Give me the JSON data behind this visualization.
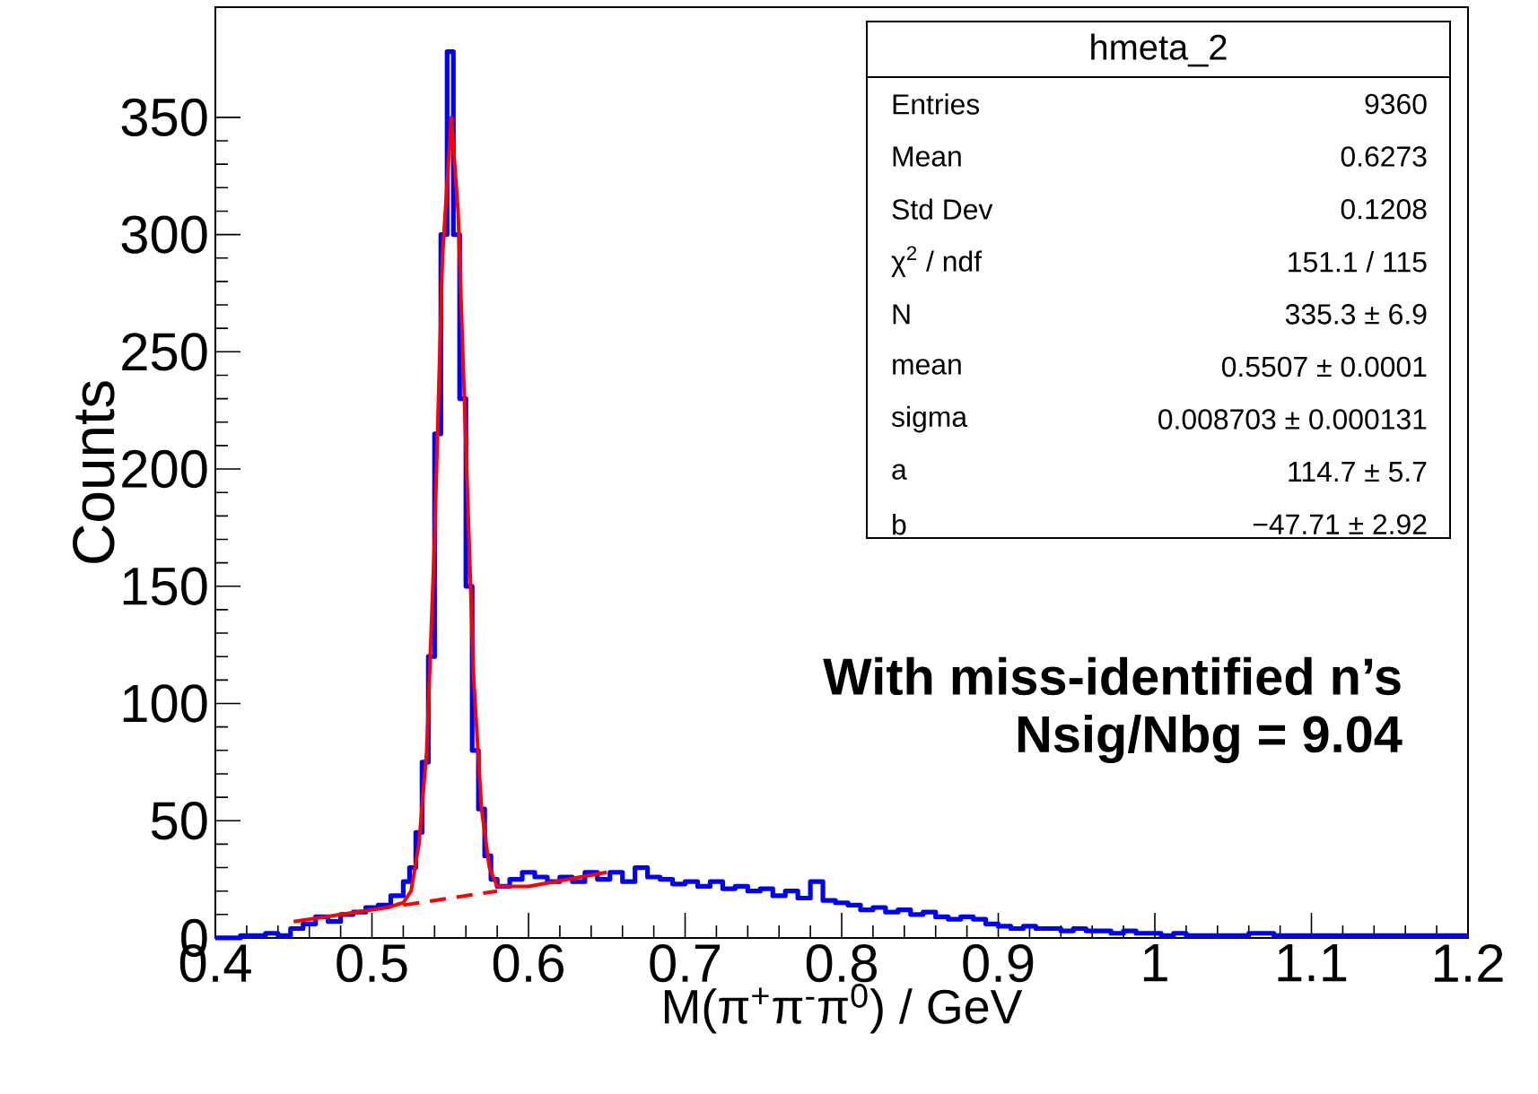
{
  "chart_data": {
    "type": "step",
    "xlabel": "M(π$^{+}$π$^{-}$π$^{0}$) / GeV",
    "ylabel": "Counts",
    "xlim": [
      0.4,
      1.2
    ],
    "ylim": [
      0,
      397
    ],
    "xticks": [
      0.4,
      0.5,
      0.6,
      0.7,
      0.8,
      0.9,
      1,
      1.1,
      1.2
    ],
    "yticks": [
      0,
      50,
      100,
      150,
      200,
      250,
      300,
      350
    ],
    "marker": "none",
    "grid": false,
    "series": [
      {
        "color": "#0000ff",
        "x": [
          0.4,
          0.416,
          0.432,
          0.44,
          0.448,
          0.456,
          0.464,
          0.472,
          0.48,
          0.488,
          0.496,
          0.504,
          0.512,
          0.52,
          0.524,
          0.528,
          0.532,
          0.536,
          0.54,
          0.544,
          0.548,
          0.552,
          0.556,
          0.56,
          0.564,
          0.568,
          0.572,
          0.576,
          0.58,
          0.588,
          0.596,
          0.604,
          0.612,
          0.62,
          0.628,
          0.636,
          0.644,
          0.652,
          0.66,
          0.668,
          0.676,
          0.684,
          0.692,
          0.7,
          0.708,
          0.716,
          0.724,
          0.732,
          0.74,
          0.748,
          0.756,
          0.764,
          0.772,
          0.78,
          0.788,
          0.796,
          0.804,
          0.812,
          0.82,
          0.828,
          0.836,
          0.844,
          0.852,
          0.86,
          0.868,
          0.876,
          0.884,
          0.892,
          0.9,
          0.908,
          0.916,
          0.924,
          0.932,
          0.94,
          0.948,
          0.956,
          0.964,
          0.972,
          0.98,
          0.988,
          0.996,
          1.004,
          1.012,
          1.02,
          1.028,
          1.044,
          1.06,
          1.076,
          1.092,
          1.108,
          1.124,
          1.14,
          1.156,
          1.172,
          1.188,
          1.2
        ],
        "values": [
          0,
          1,
          2,
          1,
          4,
          6,
          9,
          7,
          10,
          11,
          13,
          14,
          18,
          24,
          30,
          45,
          75,
          120,
          215,
          300,
          378,
          300,
          230,
          150,
          80,
          55,
          35,
          25,
          22,
          25,
          28,
          26,
          24,
          26,
          24,
          28,
          25,
          28,
          24,
          30,
          26,
          25,
          23,
          24,
          22,
          24,
          21,
          22,
          20,
          21,
          18,
          20,
          17,
          24,
          16,
          15,
          14,
          12,
          13,
          11,
          12,
          10,
          11,
          9,
          8,
          9,
          8,
          6,
          5,
          4,
          5,
          4,
          4,
          3,
          4,
          3,
          3,
          2,
          3,
          2,
          2,
          1,
          2,
          1,
          1,
          1,
          2,
          1,
          1,
          1,
          1,
          1,
          1,
          1,
          1,
          1
        ]
      },
      {
        "type": "line",
        "color": "#ff0000",
        "x": [
          0.45,
          0.48,
          0.51,
          0.52,
          0.525,
          0.53,
          0.535,
          0.54,
          0.545,
          0.5507,
          0.555,
          0.56,
          0.565,
          0.57,
          0.575,
          0.58,
          0.6,
          0.65
        ],
        "values": [
          7,
          10,
          13,
          15,
          20,
          40,
          80,
          170,
          290,
          350,
          310,
          210,
          110,
          55,
          30,
          22,
          22,
          28
        ]
      },
      {
        "type": "line",
        "color": "#ff0000",
        "line_style": "dashed",
        "x": [
          0.52,
          0.58
        ],
        "values": [
          14,
          20
        ]
      }
    ],
    "annotations": [
      "hmeta_2",
      "Entries",
      "9360",
      "Mean",
      "0.6273",
      "Std Dev",
      "0.1208",
      "χ$^{2}$ / ndf",
      "151.1 / 115",
      "N",
      "335.3 ± 6.9",
      "mean",
      "0.5507 ± 0.0001",
      "sigma",
      "0.008703 ± 0.000131",
      "a",
      "114.7 ± 5.7",
      "b",
      "−47.71 ± 2.92",
      "With miss-identified n’s",
      "Nsig/Nbg = 9.04"
    ]
  }
}
